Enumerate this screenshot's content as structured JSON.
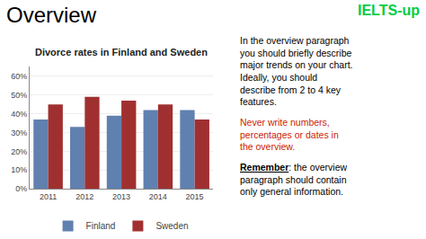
{
  "chart_data": {
    "type": "bar",
    "title": "Divorce rates in Finland and Sweden",
    "categories": [
      "2011",
      "2012",
      "2013",
      "2014",
      "2015"
    ],
    "series": [
      {
        "name": "Finland",
        "color": "#6080B0",
        "values": [
          37,
          33,
          39,
          42,
          42
        ]
      },
      {
        "name": "Sweden",
        "color": "#A03030",
        "values": [
          45,
          49,
          47,
          45,
          37
        ]
      }
    ],
    "ylim": [
      0,
      65
    ],
    "yticks": [
      {
        "value": 0,
        "label": "0%"
      },
      {
        "value": 10,
        "label": "10%"
      },
      {
        "value": 20,
        "label": "20%"
      },
      {
        "value": 30,
        "label": "30%"
      },
      {
        "value": 40,
        "label": "40%"
      },
      {
        "value": 50,
        "label": "50%"
      },
      {
        "value": 60,
        "label": "60%"
      }
    ],
    "grid": true,
    "legend": "bottom",
    "annotations": [
      {
        "text": "Overview"
      },
      {
        "text": "IELTS-up",
        "color": "#00CC44"
      },
      {
        "text": "In the overview paragraph\nyou should briefly describe\nmajor trends on your chart.\nIdeally, you should\ndescribe from 2 to 4 key\nfeatures."
      },
      {
        "text": "Never write numbers,\npercentages or dates in\nthe overview.",
        "color": "#CC2200"
      },
      {
        "text": "Remember"
      },
      {
        "text": ": the overview\nparagraph should contain\nonly general information."
      }
    ]
  }
}
